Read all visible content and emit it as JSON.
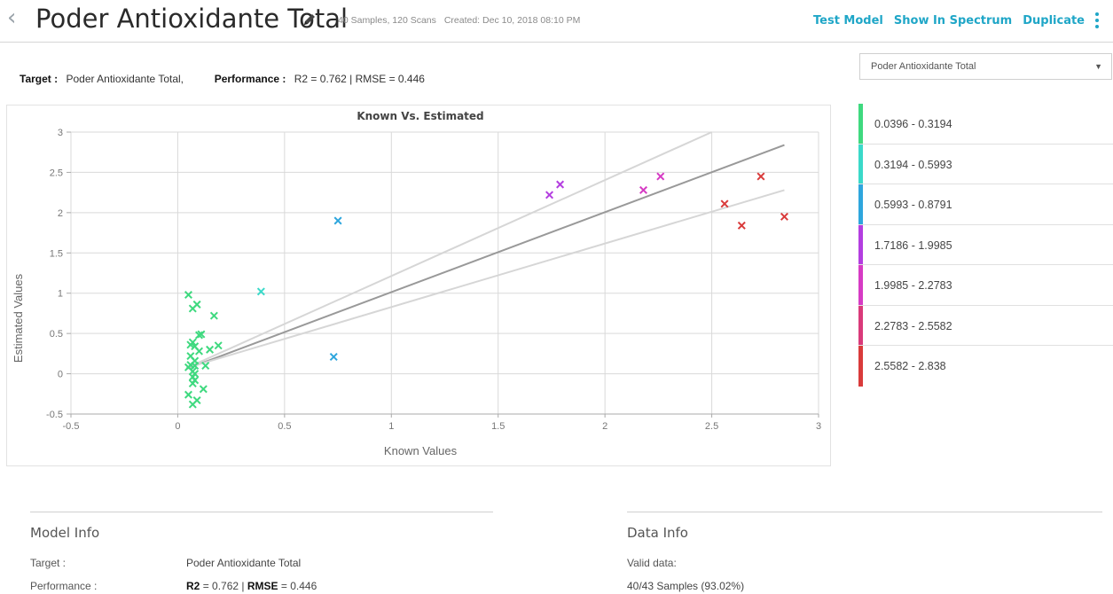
{
  "header": {
    "title": "Poder Antioxidante Total",
    "samples_scans": "40 Samples, 120 Scans",
    "created": "Created: Dec 10, 2018 08:10 PM",
    "actions": [
      "Test Model",
      "Show In Spectrum",
      "Duplicate"
    ]
  },
  "summary": {
    "target_label": "Target :",
    "target_value": "Poder Antioxidante Total,",
    "performance_label": "Performance :",
    "performance_value": "R2 = 0.762 | RMSE = 0.446"
  },
  "target_select": {
    "selected": "Poder Antioxidante Total"
  },
  "legend": [
    {
      "label": "0.0396 - 0.3194",
      "color": "#3fd97f"
    },
    {
      "label": "0.3194 - 0.5993",
      "color": "#3ad9c9"
    },
    {
      "label": "0.5993 - 0.8791",
      "color": "#2ea6dd"
    },
    {
      "label": "1.7186 - 1.9985",
      "color": "#b33ee0"
    },
    {
      "label": "1.9985 - 2.2783",
      "color": "#d63bc4"
    },
    {
      "label": "2.2783 - 2.5582",
      "color": "#d93a7a"
    },
    {
      "label": "2.5582 - 2.838",
      "color": "#d93b3b"
    }
  ],
  "chart_data": {
    "type": "scatter",
    "title": "Known Vs. Estimated",
    "xlabel": "Known Values",
    "ylabel": "Estimated Values",
    "xlim": [
      -0.5,
      3
    ],
    "ylim": [
      -0.5,
      3
    ],
    "xticks": [
      "-0.5",
      "0",
      "0.5",
      "1",
      "1.5",
      "2",
      "2.5",
      "3"
    ],
    "yticks": [
      "-0.5",
      "0",
      "0.5",
      "1",
      "1.5",
      "2",
      "2.5",
      "3"
    ],
    "grid": true,
    "lines": [
      {
        "name": "",
        "color": "#999999",
        "points": [
          [
            0.04,
            0.06
          ],
          [
            2.84,
            2.84
          ]
        ]
      },
      {
        "name": "",
        "color": "#d6d6d6",
        "points": [
          [
            0.04,
            0.07
          ],
          [
            2.5,
            3.0
          ]
        ]
      },
      {
        "name": "",
        "color": "#d6d6d6",
        "points": [
          [
            0.04,
            0.07
          ],
          [
            2.84,
            2.28
          ]
        ]
      }
    ],
    "series": [
      {
        "color": "#3fd97f",
        "points": [
          [
            0.05,
            0.98
          ],
          [
            0.07,
            0.81
          ],
          [
            0.09,
            0.86
          ],
          [
            0.17,
            0.72
          ],
          [
            0.1,
            0.48
          ],
          [
            0.11,
            0.49
          ],
          [
            0.06,
            0.36
          ],
          [
            0.07,
            0.39
          ],
          [
            0.08,
            0.34
          ],
          [
            0.19,
            0.35
          ],
          [
            0.15,
            0.3
          ],
          [
            0.1,
            0.28
          ],
          [
            0.06,
            0.22
          ],
          [
            0.08,
            0.16
          ],
          [
            0.06,
            0.11
          ],
          [
            0.05,
            0.08
          ],
          [
            0.13,
            0.1
          ],
          [
            0.08,
            0.1
          ],
          [
            0.07,
            0.03
          ],
          [
            0.08,
            0.0
          ],
          [
            0.07,
            -0.04
          ],
          [
            0.08,
            -0.08
          ],
          [
            0.07,
            -0.12
          ],
          [
            0.12,
            -0.19
          ],
          [
            0.05,
            -0.26
          ],
          [
            0.09,
            -0.33
          ],
          [
            0.07,
            -0.38
          ]
        ]
      },
      {
        "color": "#3ad9c9",
        "points": [
          [
            0.39,
            1.02
          ]
        ]
      },
      {
        "color": "#2ea6dd",
        "points": [
          [
            0.75,
            1.9
          ],
          [
            0.73,
            0.21
          ]
        ]
      },
      {
        "color": "#b33ee0",
        "points": [
          [
            1.74,
            2.22
          ],
          [
            1.79,
            2.35
          ]
        ]
      },
      {
        "color": "#d63bc4",
        "points": [
          [
            2.18,
            2.28
          ],
          [
            2.26,
            2.45
          ]
        ]
      },
      {
        "color": "#d93b3b",
        "points": [
          [
            2.56,
            2.11
          ],
          [
            2.64,
            1.84
          ],
          [
            2.73,
            2.45
          ],
          [
            2.84,
            1.95
          ]
        ]
      }
    ]
  },
  "model_info": {
    "title": "Model Info",
    "target_label": "Target :",
    "target_value": "Poder Antioxidante Total",
    "performance_label": "Performance :",
    "r2_label": "R2",
    "r2_value": "= 0.762 |",
    "rmse_label": "RMSE",
    "rmse_value": "= 0.446"
  },
  "data_info": {
    "title": "Data Info",
    "valid_label": "Valid data:",
    "valid_value": "40/43 Samples (93.02%)"
  }
}
